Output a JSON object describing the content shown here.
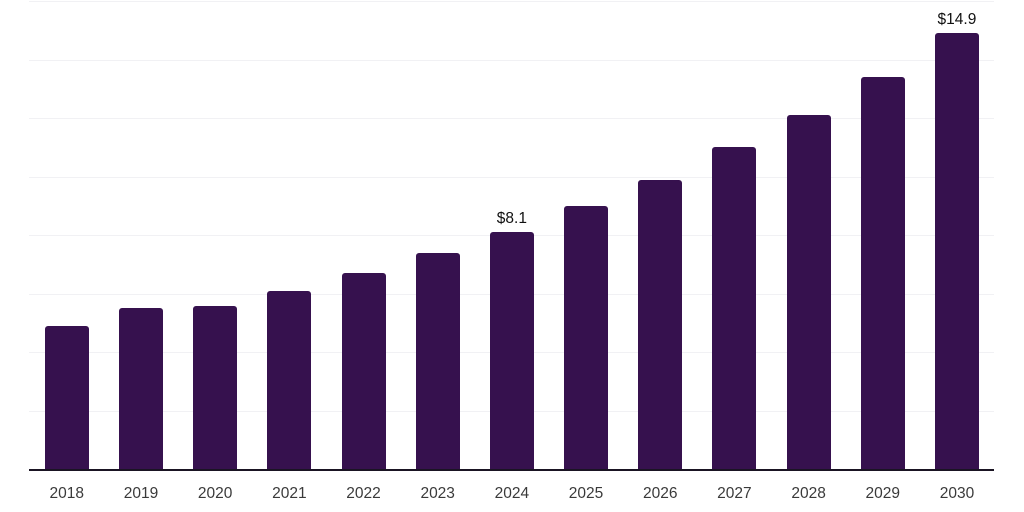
{
  "chart_data": {
    "type": "bar",
    "title": "",
    "categories": [
      "2018",
      "2019",
      "2020",
      "2021",
      "2022",
      "2023",
      "2024",
      "2025",
      "2026",
      "2027",
      "2028",
      "2029",
      "2030"
    ],
    "values": [
      4.9,
      5.5,
      5.6,
      6.1,
      6.7,
      7.4,
      8.1,
      9.0,
      9.9,
      11.0,
      12.1,
      13.4,
      14.9
    ],
    "data_labels": [
      {
        "category": "2024",
        "text": "$8.1"
      },
      {
        "category": "2030",
        "text": "$14.9"
      }
    ],
    "xlabel": "",
    "ylabel": "",
    "ylim": [
      0,
      16
    ],
    "gridline_step": 2,
    "grid": "on",
    "legend": "none",
    "colors": {
      "bar": "#36114E",
      "axis_line": "#1A1423",
      "gridline": "#F1F1F4",
      "tick_label": "#3A3A3A",
      "value_label": "#111111"
    }
  }
}
